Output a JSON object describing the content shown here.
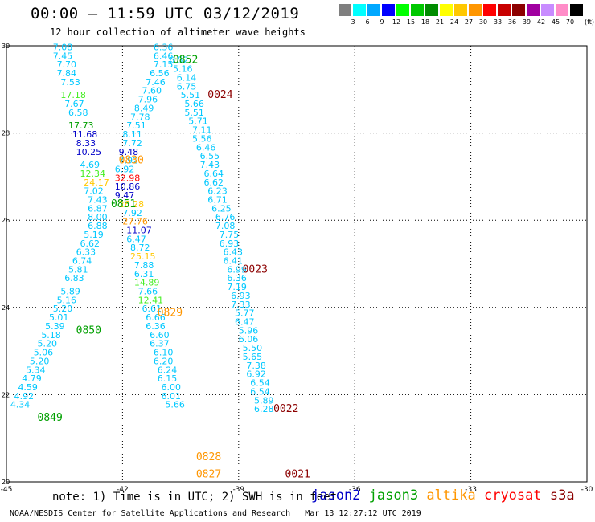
{
  "title": "00:00 – 11:59 UTC 03/12/2019",
  "subtitle": "12 hour collection of altimeter wave heights",
  "legend": {
    "unit": "(ft)",
    "bins": [
      {
        "label": "3",
        "color": "#7f7f7f"
      },
      {
        "label": "6",
        "color": "#00ffff"
      },
      {
        "label": "9",
        "color": "#00a8ff"
      },
      {
        "label": "12",
        "color": "#0000ff"
      },
      {
        "label": "15",
        "color": "#00ff00"
      },
      {
        "label": "18",
        "color": "#00c800"
      },
      {
        "label": "21",
        "color": "#008c00"
      },
      {
        "label": "24",
        "color": "#ffff00"
      },
      {
        "label": "27",
        "color": "#ffc800"
      },
      {
        "label": "30",
        "color": "#ff9600"
      },
      {
        "label": "33",
        "color": "#ff0000"
      },
      {
        "label": "36",
        "color": "#c80000"
      },
      {
        "label": "39",
        "color": "#8c0000"
      },
      {
        "label": "42",
        "color": "#a000a0"
      },
      {
        "label": "45",
        "color": "#c88cff"
      },
      {
        "label": "70",
        "color": "#ff8cc8"
      },
      {
        "label": "",
        "color": "#000000"
      }
    ]
  },
  "map": {
    "lon_min": -45,
    "lon_max": -30,
    "lat_min": 20,
    "lat_max": 30,
    "x_ticks": [
      "-45",
      "-42",
      "-39",
      "-36",
      "-33",
      "-30"
    ],
    "y_ticks": [
      "30",
      "28",
      "26",
      "24",
      "22",
      "20"
    ]
  },
  "colors": {
    "cyan": "#00c8ff",
    "jason2": "#0000c8",
    "jason3": "#00a000",
    "jason3_light": "#44ee22",
    "altika": "#ff9600",
    "altika_light": "#ffc800",
    "cryosat": "#ff0000",
    "s3a": "#8c0000"
  },
  "chart_data": {
    "type": "scatter",
    "title": "00:00 – 11:59 UTC 03/12/2019",
    "subtitle": "12 hour collection of altimeter wave heights",
    "units": "ft",
    "pass_labels": [
      {
        "text": "0852",
        "lon": -40.7,
        "lat": 29.6,
        "sat": "jason3"
      },
      {
        "text": "0024",
        "lon": -39.8,
        "lat": 28.8,
        "sat": "s3a"
      },
      {
        "text": "0830",
        "lon": -42.1,
        "lat": 27.3,
        "sat": "altika"
      },
      {
        "text": "0851",
        "lon": -42.3,
        "lat": 26.3,
        "sat": "jason3"
      },
      {
        "text": "0023",
        "lon": -38.9,
        "lat": 24.8,
        "sat": "s3a"
      },
      {
        "text": "0829",
        "lon": -41.1,
        "lat": 23.8,
        "sat": "altika"
      },
      {
        "text": "0850",
        "lon": -43.2,
        "lat": 23.4,
        "sat": "jason3"
      },
      {
        "text": "0022",
        "lon": -38.1,
        "lat": 21.6,
        "sat": "s3a"
      },
      {
        "text": "0849",
        "lon": -44.2,
        "lat": 21.4,
        "sat": "jason3"
      },
      {
        "text": "0828",
        "lon": -40.1,
        "lat": 20.5,
        "sat": "altika"
      },
      {
        "text": "0827",
        "lon": -40.1,
        "lat": 20.1,
        "sat": "altika"
      },
      {
        "text": "0021",
        "lon": -37.8,
        "lat": 20.1,
        "sat": "s3a"
      }
    ],
    "points": [
      {
        "lon": -43.8,
        "lat": 29.9,
        "v": "7.08"
      },
      {
        "lon": -43.8,
        "lat": 29.7,
        "v": "7.45"
      },
      {
        "lon": -43.7,
        "lat": 29.5,
        "v": "7.70"
      },
      {
        "lon": -43.7,
        "lat": 29.3,
        "v": "7.84"
      },
      {
        "lon": -43.6,
        "lat": 29.1,
        "v": "7.53"
      },
      {
        "lon": -43.6,
        "lat": 28.8,
        "v": "17.18",
        "c": "jason3_light"
      },
      {
        "lon": -43.5,
        "lat": 28.6,
        "v": "7.67"
      },
      {
        "lon": -43.4,
        "lat": 28.4,
        "v": "6.58"
      },
      {
        "lon": -43.4,
        "lat": 28.1,
        "v": "17.73",
        "c": "jason3"
      },
      {
        "lon": -43.3,
        "lat": 27.9,
        "v": "11.68",
        "c": "jason2"
      },
      {
        "lon": -43.2,
        "lat": 27.7,
        "v": "8.33",
        "c": "jason2"
      },
      {
        "lon": -43.2,
        "lat": 27.5,
        "v": "10.25",
        "c": "jason2"
      },
      {
        "lon": -43.1,
        "lat": 27.2,
        "v": "4.69"
      },
      {
        "lon": -43.1,
        "lat": 27.0,
        "v": "12.34",
        "c": "jason3_light"
      },
      {
        "lon": -43.0,
        "lat": 26.8,
        "v": "24.17",
        "c": "altika_light"
      },
      {
        "lon": -43.0,
        "lat": 26.6,
        "v": "7.02"
      },
      {
        "lon": -42.9,
        "lat": 26.4,
        "v": "7.43"
      },
      {
        "lon": -42.9,
        "lat": 26.2,
        "v": "6.87"
      },
      {
        "lon": -42.9,
        "lat": 26.0,
        "v": "8.00"
      },
      {
        "lon": -42.9,
        "lat": 25.8,
        "v": "6.88"
      },
      {
        "lon": -43.0,
        "lat": 25.6,
        "v": "5.19"
      },
      {
        "lon": -43.1,
        "lat": 25.4,
        "v": "6.62"
      },
      {
        "lon": -43.2,
        "lat": 25.2,
        "v": "6.33"
      },
      {
        "lon": -43.3,
        "lat": 25.0,
        "v": "6.74"
      },
      {
        "lon": -43.4,
        "lat": 24.8,
        "v": "5.81"
      },
      {
        "lon": -43.5,
        "lat": 24.6,
        "v": "6.83"
      },
      {
        "lon": -43.6,
        "lat": 24.3,
        "v": "5.89"
      },
      {
        "lon": -43.7,
        "lat": 24.1,
        "v": "5.16"
      },
      {
        "lon": -43.8,
        "lat": 23.9,
        "v": "5.20"
      },
      {
        "lon": -43.9,
        "lat": 23.7,
        "v": "5.01"
      },
      {
        "lon": -44.0,
        "lat": 23.5,
        "v": "5.39"
      },
      {
        "lon": -44.1,
        "lat": 23.3,
        "v": "5.18"
      },
      {
        "lon": -44.2,
        "lat": 23.1,
        "v": "5.20"
      },
      {
        "lon": -44.3,
        "lat": 22.9,
        "v": "5.06"
      },
      {
        "lon": -44.4,
        "lat": 22.7,
        "v": "5.20"
      },
      {
        "lon": -44.5,
        "lat": 22.5,
        "v": "5.34"
      },
      {
        "lon": -44.6,
        "lat": 22.3,
        "v": "4.79"
      },
      {
        "lon": -44.7,
        "lat": 22.1,
        "v": "4.59"
      },
      {
        "lon": -44.8,
        "lat": 21.9,
        "v": "4.92"
      },
      {
        "lon": -44.9,
        "lat": 21.7,
        "v": "4.34"
      },
      {
        "lon": -41.2,
        "lat": 29.9,
        "v": "6.36"
      },
      {
        "lon": -41.2,
        "lat": 29.7,
        "v": "6.46"
      },
      {
        "lon": -41.2,
        "lat": 29.5,
        "v": "7.15"
      },
      {
        "lon": -41.3,
        "lat": 29.3,
        "v": "6.56"
      },
      {
        "lon": -41.4,
        "lat": 29.1,
        "v": "7.46"
      },
      {
        "lon": -41.5,
        "lat": 28.9,
        "v": "7.60"
      },
      {
        "lon": -41.6,
        "lat": 28.7,
        "v": "7.96"
      },
      {
        "lon": -41.7,
        "lat": 28.5,
        "v": "8.49"
      },
      {
        "lon": -41.8,
        "lat": 28.3,
        "v": "7.78"
      },
      {
        "lon": -41.9,
        "lat": 28.1,
        "v": "7.51"
      },
      {
        "lon": -42.0,
        "lat": 27.9,
        "v": "8.11"
      },
      {
        "lon": -42.0,
        "lat": 27.7,
        "v": "7.72"
      },
      {
        "lon": -42.1,
        "lat": 27.5,
        "v": "9.48",
        "c": "jason2"
      },
      {
        "lon": -42.1,
        "lat": 27.3,
        "v": "7.92"
      },
      {
        "lon": -42.2,
        "lat": 27.1,
        "v": "6.92"
      },
      {
        "lon": -42.2,
        "lat": 26.9,
        "v": "32.98",
        "c": "cryosat"
      },
      {
        "lon": -42.2,
        "lat": 26.7,
        "v": "10.86",
        "c": "jason2"
      },
      {
        "lon": -42.2,
        "lat": 26.5,
        "v": "9.47",
        "c": "jason2"
      },
      {
        "lon": -42.1,
        "lat": 26.3,
        "v": "26.28",
        "c": "altika_light"
      },
      {
        "lon": -42.0,
        "lat": 26.1,
        "v": "7.92"
      },
      {
        "lon": -42.0,
        "lat": 25.9,
        "v": "27.76",
        "c": "altika"
      },
      {
        "lon": -41.9,
        "lat": 25.7,
        "v": "11.07",
        "c": "jason2"
      },
      {
        "lon": -41.9,
        "lat": 25.5,
        "v": "6.47"
      },
      {
        "lon": -41.8,
        "lat": 25.3,
        "v": "8.72"
      },
      {
        "lon": -41.8,
        "lat": 25.1,
        "v": "25.15",
        "c": "altika_light"
      },
      {
        "lon": -41.7,
        "lat": 24.9,
        "v": "7.88"
      },
      {
        "lon": -41.7,
        "lat": 24.7,
        "v": "6.31"
      },
      {
        "lon": -41.7,
        "lat": 24.5,
        "v": "14.89",
        "c": "jason3_light"
      },
      {
        "lon": -41.6,
        "lat": 24.3,
        "v": "7.66"
      },
      {
        "lon": -41.6,
        "lat": 24.1,
        "v": "12.41",
        "c": "jason3_light"
      },
      {
        "lon": -41.5,
        "lat": 23.9,
        "v": "6.61"
      },
      {
        "lon": -41.4,
        "lat": 23.7,
        "v": "6.66"
      },
      {
        "lon": -41.4,
        "lat": 23.5,
        "v": "6.36"
      },
      {
        "lon": -41.3,
        "lat": 23.3,
        "v": "6.60"
      },
      {
        "lon": -41.3,
        "lat": 23.1,
        "v": "6.37"
      },
      {
        "lon": -41.2,
        "lat": 22.9,
        "v": "6.10"
      },
      {
        "lon": -41.2,
        "lat": 22.7,
        "v": "6.20"
      },
      {
        "lon": -41.1,
        "lat": 22.5,
        "v": "6.24"
      },
      {
        "lon": -41.1,
        "lat": 22.3,
        "v": "6.15"
      },
      {
        "lon": -41.0,
        "lat": 22.1,
        "v": "6.00"
      },
      {
        "lon": -41.0,
        "lat": 21.9,
        "v": "6.01"
      },
      {
        "lon": -40.9,
        "lat": 21.7,
        "v": "5.66"
      },
      {
        "lon": -40.8,
        "lat": 29.6,
        "v": "6.52"
      },
      {
        "lon": -40.7,
        "lat": 29.4,
        "v": "5.16"
      },
      {
        "lon": -40.6,
        "lat": 29.2,
        "v": "6.14"
      },
      {
        "lon": -40.6,
        "lat": 29.0,
        "v": "6.75"
      },
      {
        "lon": -40.5,
        "lat": 28.8,
        "v": "5.51"
      },
      {
        "lon": -40.4,
        "lat": 28.6,
        "v": "5.66"
      },
      {
        "lon": -40.4,
        "lat": 28.4,
        "v": "5.51"
      },
      {
        "lon": -40.3,
        "lat": 28.2,
        "v": "5.71"
      },
      {
        "lon": -40.2,
        "lat": 28.0,
        "v": "7.11"
      },
      {
        "lon": -40.2,
        "lat": 27.8,
        "v": "5.56"
      },
      {
        "lon": -40.1,
        "lat": 27.6,
        "v": "6.46"
      },
      {
        "lon": -40.0,
        "lat": 27.4,
        "v": "6.55"
      },
      {
        "lon": -40.0,
        "lat": 27.2,
        "v": "7.43"
      },
      {
        "lon": -39.9,
        "lat": 27.0,
        "v": "6.64"
      },
      {
        "lon": -39.9,
        "lat": 26.8,
        "v": "6.62"
      },
      {
        "lon": -39.8,
        "lat": 26.6,
        "v": "6.23"
      },
      {
        "lon": -39.8,
        "lat": 26.4,
        "v": "6.71"
      },
      {
        "lon": -39.7,
        "lat": 26.2,
        "v": "6.25"
      },
      {
        "lon": -39.6,
        "lat": 26.0,
        "v": "6.76"
      },
      {
        "lon": -39.6,
        "lat": 25.8,
        "v": "7.08"
      },
      {
        "lon": -39.5,
        "lat": 25.6,
        "v": "7.75"
      },
      {
        "lon": -39.5,
        "lat": 25.4,
        "v": "6.93"
      },
      {
        "lon": -39.4,
        "lat": 25.2,
        "v": "6.43"
      },
      {
        "lon": -39.4,
        "lat": 25.0,
        "v": "6.41"
      },
      {
        "lon": -39.3,
        "lat": 24.8,
        "v": "6.99"
      },
      {
        "lon": -39.3,
        "lat": 24.6,
        "v": "6.36"
      },
      {
        "lon": -39.3,
        "lat": 24.4,
        "v": "7.19"
      },
      {
        "lon": -39.2,
        "lat": 24.2,
        "v": "6.93"
      },
      {
        "lon": -39.2,
        "lat": 24.0,
        "v": "7.33"
      },
      {
        "lon": -39.1,
        "lat": 23.8,
        "v": "5.77"
      },
      {
        "lon": -39.1,
        "lat": 23.6,
        "v": "6.47"
      },
      {
        "lon": -39.0,
        "lat": 23.4,
        "v": "5.96"
      },
      {
        "lon": -39.0,
        "lat": 23.2,
        "v": "6.06"
      },
      {
        "lon": -38.9,
        "lat": 23.0,
        "v": "5.50"
      },
      {
        "lon": -38.9,
        "lat": 22.8,
        "v": "5.65"
      },
      {
        "lon": -38.8,
        "lat": 22.6,
        "v": "7.38"
      },
      {
        "lon": -38.8,
        "lat": 22.4,
        "v": "6.92"
      },
      {
        "lon": -38.7,
        "lat": 22.2,
        "v": "6.54"
      },
      {
        "lon": -38.7,
        "lat": 22.0,
        "v": "6.54"
      },
      {
        "lon": -38.6,
        "lat": 21.8,
        "v": "5.89"
      },
      {
        "lon": -38.6,
        "lat": 21.6,
        "v": "6.28"
      }
    ]
  },
  "note": "note: 1) Time is in UTC; 2) SWH is in feet",
  "satellites": [
    {
      "name": "jason2",
      "color": "#0000c8"
    },
    {
      "name": "jason3",
      "color": "#00a000"
    },
    {
      "name": "altika",
      "color": "#ff9600"
    },
    {
      "name": "cryosat",
      "color": "#ff0000"
    },
    {
      "name": "s3a",
      "color": "#8c0000"
    }
  ],
  "footer": "NOAA/NESDIS Center for Satellite Applications and Research   Mar 13 12:27:12 UTC 2019"
}
